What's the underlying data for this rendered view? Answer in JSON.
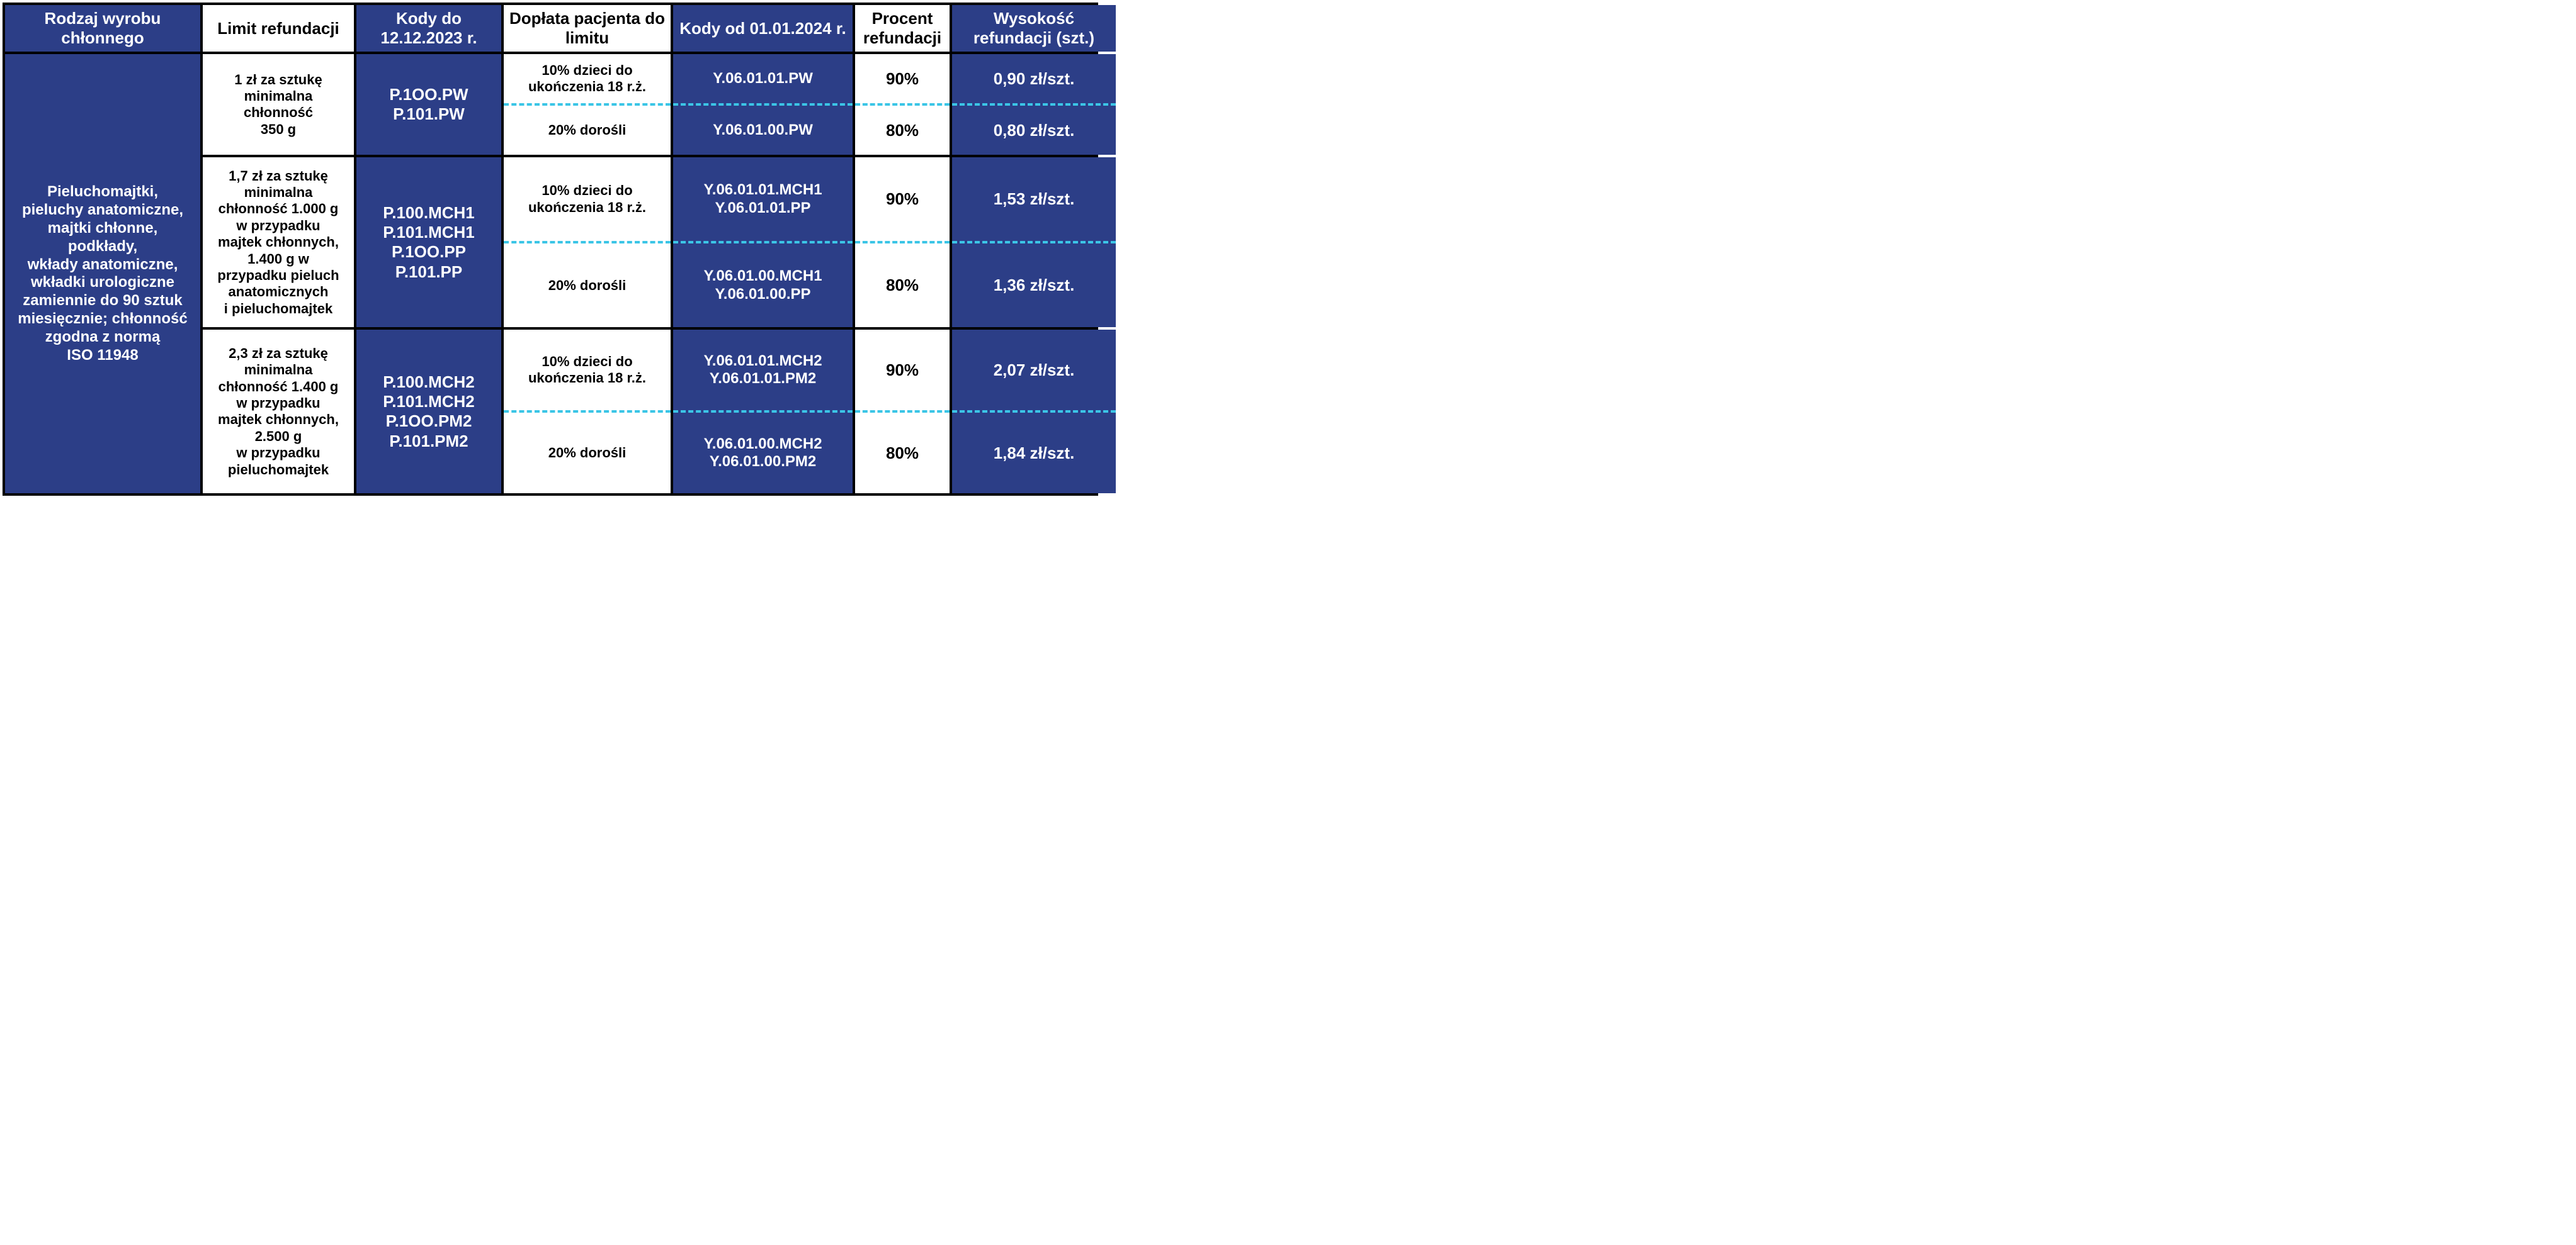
{
  "colors": {
    "blue_bg": "#2c3e87",
    "white_bg": "#ffffff",
    "text_white": "#ffffff",
    "text_black": "#000000",
    "border": "#000000",
    "dash": "#3bc5e6"
  },
  "headers": {
    "c1": "Rodzaj wyrobu chłonnego",
    "c2": "Limit refundacji",
    "c3": "Kody do 12.12.2023 r.",
    "c4": "Dopłata pacjenta do limitu",
    "c5": "Kody od 01.01.2024 r.",
    "c6": "Procent refundacji",
    "c7": "Wysokość refundacji (szt.)"
  },
  "rowLabel": "Pieluchomajtki,\npieluchy anatomiczne,\nmajtki chłonne,\npodkłady,\nwkłady anatomiczne,\nwkładki urologiczne\nzamiennie do 90 sztuk\nmiesięcznie; chłonność\nzgodna z normą\nISO 11948",
  "groups": [
    {
      "limit": "1 zł za sztukę\nminimalna\nchłonność\n350 g",
      "codesOld": "P.1OO.PW\nP.101.PW",
      "sub": [
        {
          "doplata": "10% dzieci do\nukończenia 18 r.ż.",
          "codesNew": "Y.06.01.01.PW",
          "procent": "90%",
          "wys": "0,90 zł/szt."
        },
        {
          "doplata": "20% dorośli",
          "codesNew": "Y.06.01.00.PW",
          "procent": "80%",
          "wys": "0,80 zł/szt."
        }
      ]
    },
    {
      "limit": "1,7 zł za sztukę\nminimalna\nchłonność 1.000 g\nw przypadku\nmajtek chłonnych,\n1.400 g w\nprzypadku pieluch\nanatomicznych\ni pieluchomajtek",
      "codesOld": "P.100.MCH1\nP.101.MCH1\nP.1OO.PP\nP.101.PP",
      "sub": [
        {
          "doplata": "10% dzieci do\nukończenia 18 r.ż.",
          "codesNew": "Y.06.01.01.MCH1\nY.06.01.01.PP",
          "procent": "90%",
          "wys": "1,53 zł/szt."
        },
        {
          "doplata": "20% dorośli",
          "codesNew": "Y.06.01.00.MCH1\nY.06.01.00.PP",
          "procent": "80%",
          "wys": "1,36 zł/szt."
        }
      ]
    },
    {
      "limit": "2,3 zł za sztukę\nminimalna\nchłonność 1.400 g\nw przypadku\nmajtek chłonnych,\n2.500 g\nw przypadku\npieluchomajtek",
      "codesOld": "P.100.MCH2\nP.101.MCH2\nP.1OO.PM2\nP.101.PM2",
      "sub": [
        {
          "doplata": "10% dzieci do\nukończenia 18 r.ż.",
          "codesNew": "Y.06.01.01.MCH2\nY.06.01.01.PM2",
          "procent": "90%",
          "wys": "2,07 zł/szt."
        },
        {
          "doplata": "20% dorośli",
          "codesNew": "Y.06.01.00.MCH2\nY.06.01.00.PM2",
          "procent": "80%",
          "wys": "1,84 zł/szt."
        }
      ]
    }
  ]
}
